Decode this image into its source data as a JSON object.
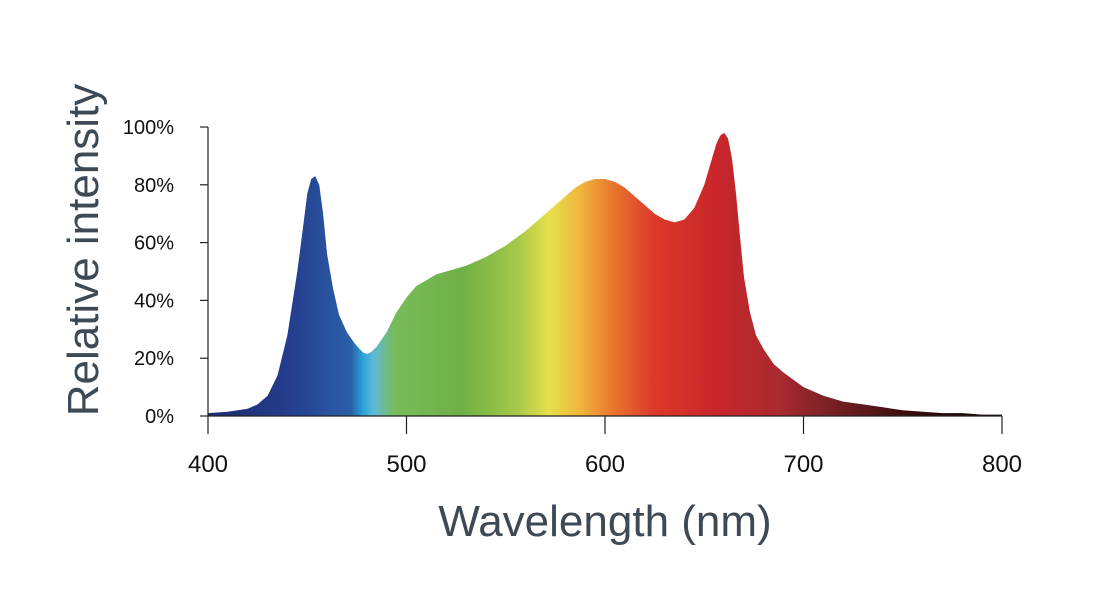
{
  "chart_data": {
    "type": "area",
    "title": "",
    "xlabel": "Wavelength (nm)",
    "ylabel": "Relative intensity",
    "xlim": [
      400,
      800
    ],
    "ylim": [
      0,
      100
    ],
    "x_ticks": [
      {
        "value": 400,
        "label": "400"
      },
      {
        "value": 500,
        "label": "500"
      },
      {
        "value": 600,
        "label": "600"
      },
      {
        "value": 700,
        "label": "700"
      },
      {
        "value": 800,
        "label": "800"
      }
    ],
    "y_ticks": [
      {
        "value": 0,
        "label": "0%"
      },
      {
        "value": 20,
        "label": "20%"
      },
      {
        "value": 40,
        "label": "40%"
      },
      {
        "value": 60,
        "label": "60%"
      },
      {
        "value": 80,
        "label": "80%"
      },
      {
        "value": 100,
        "label": "100%"
      }
    ],
    "series": [
      {
        "x": [
          400,
          410,
          420,
          425,
          430,
          435,
          440,
          445,
          448,
          450,
          452,
          454,
          456,
          458,
          460,
          463,
          466,
          470,
          474,
          478,
          480,
          482,
          485,
          490,
          495,
          500,
          505,
          510,
          515,
          520,
          530,
          540,
          550,
          560,
          570,
          580,
          585,
          590,
          595,
          600,
          605,
          610,
          615,
          620,
          625,
          630,
          635,
          640,
          645,
          650,
          653,
          656,
          658,
          660,
          662,
          664,
          666,
          668,
          670,
          673,
          676,
          680,
          685,
          690,
          700,
          710,
          720,
          730,
          740,
          750,
          760,
          770,
          780,
          790,
          800
        ],
        "y": [
          1,
          1.5,
          2.5,
          4,
          7,
          14,
          28,
          50,
          66,
          77,
          82,
          83,
          80,
          70,
          56,
          44,
          35,
          29,
          25,
          22,
          21.5,
          22,
          24,
          29,
          36,
          41,
          45,
          47,
          49,
          50,
          52,
          55,
          59,
          64,
          70,
          76,
          79,
          81,
          82,
          82,
          81,
          79,
          76,
          73,
          70,
          68,
          67,
          68,
          72,
          80,
          87,
          94,
          97,
          98,
          96,
          89,
          77,
          62,
          48,
          36,
          28,
          23,
          18,
          15,
          10,
          7,
          5,
          4,
          3,
          2,
          1.5,
          1,
          1,
          0.5,
          0.5
        ]
      }
    ],
    "grid": false,
    "legend": "none"
  }
}
